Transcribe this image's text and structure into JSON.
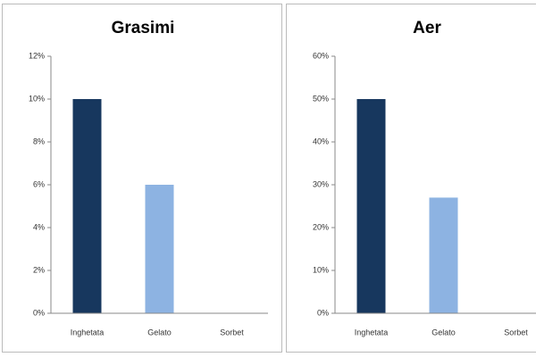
{
  "chart_data": [
    {
      "type": "bar",
      "title": "Grasimi",
      "categories": [
        "Inghetata",
        "Gelato",
        "Sorbet"
      ],
      "values": [
        10,
        6,
        0
      ],
      "colors": [
        "#17375e",
        "#8db3e2",
        "#8db3e2"
      ],
      "ylim": [
        0,
        12
      ],
      "yticks": [
        {
          "value": 0,
          "label": "0%"
        },
        {
          "value": 2,
          "label": "2%"
        },
        {
          "value": 4,
          "label": "4%"
        },
        {
          "value": 6,
          "label": "6%"
        },
        {
          "value": 8,
          "label": "8%"
        },
        {
          "value": 10,
          "label": "10%"
        },
        {
          "value": 12,
          "label": "12%"
        }
      ]
    },
    {
      "type": "bar",
      "title": "Aer",
      "categories": [
        "Inghetata",
        "Gelato",
        "Sorbet"
      ],
      "values": [
        50,
        27,
        0
      ],
      "colors": [
        "#17375e",
        "#8db3e2",
        "#8db3e2"
      ],
      "ylim": [
        0,
        60
      ],
      "yticks": [
        {
          "value": 0,
          "label": "0%"
        },
        {
          "value": 10,
          "label": "10%"
        },
        {
          "value": 20,
          "label": "20%"
        },
        {
          "value": 30,
          "label": "30%"
        },
        {
          "value": 40,
          "label": "40%"
        },
        {
          "value": 50,
          "label": "50%"
        },
        {
          "value": 60,
          "label": "60%"
        }
      ]
    }
  ]
}
